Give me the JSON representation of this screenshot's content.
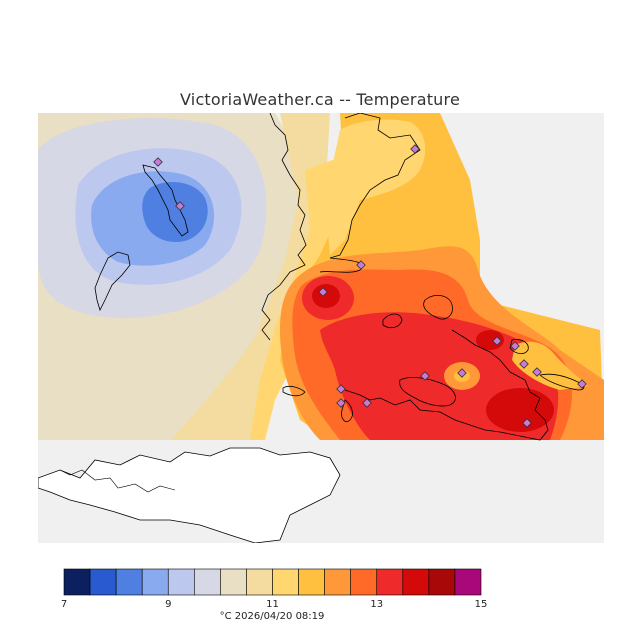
{
  "title": "VictoriaWeather.ca -- Temperature",
  "legend": {
    "colors": [
      "#0c1f5e",
      "#2a5ad0",
      "#4f7fe0",
      "#8aaaf0",
      "#bcc8ee",
      "#d6d8e6",
      "#e8dfc4",
      "#f4dca0",
      "#ffd670",
      "#ffc040",
      "#ff9838",
      "#ff6a28",
      "#ee2a2a",
      "#d40a0a",
      "#a80808",
      "#a8087a"
    ],
    "ticks": [
      {
        "label": "7",
        "value": 7
      },
      {
        "label": "9",
        "value": 9
      },
      {
        "label": "11",
        "value": 11
      },
      {
        "label": "13",
        "value": 13
      },
      {
        "label": "15",
        "value": 15
      }
    ],
    "min": 7,
    "max": 15
  },
  "footer": "°C  2026/04/20 08:19",
  "station_count": 16
}
